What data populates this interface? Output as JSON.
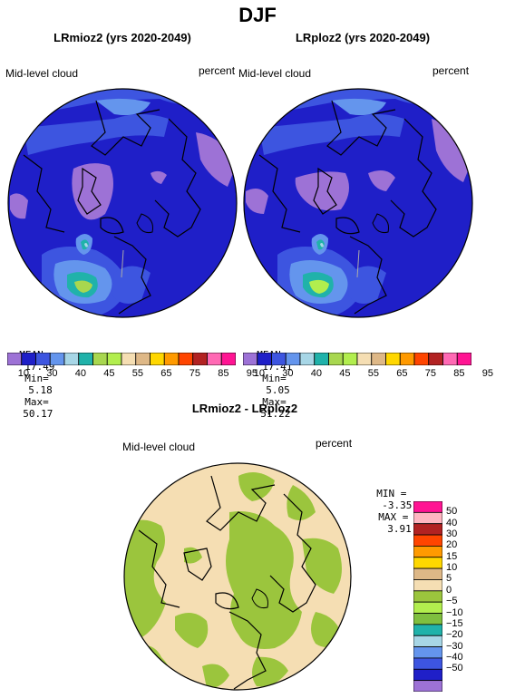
{
  "figure": {
    "title": "DJF",
    "panels": [
      {
        "title": "LRmioz2 (yrs 2020-2049)",
        "left_label": "Mid-level cloud",
        "right_label": "percent",
        "stats": {
          "mean_label": "MEAN=",
          "mean": "17.49",
          "min_label": "Min=",
          "min": "5.18",
          "max_label": "Max=",
          "max": "50.17"
        },
        "colorbar": {
          "colors": [
            "#9d72d6",
            "#1f1fc8",
            "#3d55e0",
            "#6495ed",
            "#a7d6e6",
            "#20b2aa",
            "#a8d74f",
            "#b2ee4e",
            "#f5deb3",
            "#deb887",
            "#ffd700",
            "#ff9a00",
            "#ff4500",
            "#b22222",
            "#ff69b4",
            "#ff1493"
          ],
          "labels": [
            "10",
            "30",
            "40",
            "45",
            "55",
            "65",
            "75",
            "85",
            "95"
          ]
        }
      },
      {
        "title": "LRploz2 (yrs 2020-2049)",
        "left_label": "Mid-level cloud",
        "right_label": "percent",
        "stats": {
          "mean_label": "MEAN=",
          "mean": "17.41",
          "min_label": "Min=",
          "min": "5.05",
          "max_label": "Max=",
          "max": "51.22"
        },
        "colorbar": {
          "colors": [
            "#9d72d6",
            "#1f1fc8",
            "#3d55e0",
            "#6495ed",
            "#a7d6e6",
            "#20b2aa",
            "#a8d74f",
            "#b2ee4e",
            "#f5deb3",
            "#deb887",
            "#ffd700",
            "#ff9a00",
            "#ff4500",
            "#b22222",
            "#ff69b4",
            "#ff1493"
          ],
          "labels": [
            "10",
            "30",
            "40",
            "45",
            "55",
            "65",
            "75",
            "85",
            "95"
          ]
        }
      }
    ],
    "difference": {
      "title": "LRmioz2 - LRploz2",
      "left_label": "Mid-level cloud",
      "right_label": "percent",
      "min_label": "MIN =",
      "min": "-3.35",
      "max_label": "MAX =",
      "max": "3.91",
      "colorbar": {
        "colors": [
          "#ff1493",
          "#ffb6c1",
          "#b22222",
          "#ff4500",
          "#ff9a00",
          "#ffd700",
          "#deb887",
          "#f5deb3",
          "#9bc53d",
          "#b2ee4e",
          "#7fbf3f",
          "#20b2aa",
          "#a7d6e6",
          "#6495ed",
          "#3d55e0",
          "#1f1fc8",
          "#9d72d6"
        ],
        "labels": [
          "50",
          "40",
          "30",
          "20",
          "15",
          "10",
          "5",
          "0",
          "−5",
          "−10",
          "−15",
          "−20",
          "−30",
          "−40",
          "−50"
        ]
      }
    }
  }
}
